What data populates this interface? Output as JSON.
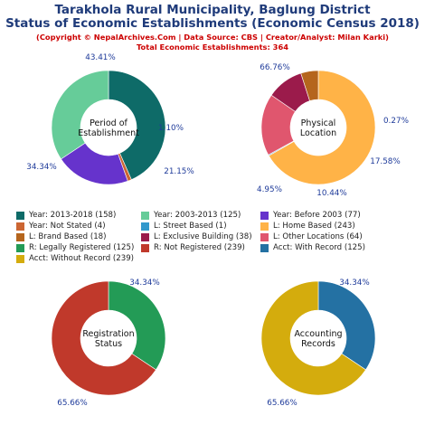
{
  "header": {
    "title_line1": "Tarakhola Rural Municipality, Baglung District",
    "title_line2": "Status of Economic Establishments (Economic Census 2018)",
    "copyright": "(Copyright © NepalArchives.Com | Data Source: CBS | Creator/Analyst: Milan Karki)",
    "total": "Total Economic Establishments: 364"
  },
  "legend": [
    {
      "label": "Year: 2013-2018 (158)",
      "color": "#0e6b68"
    },
    {
      "label": "Year: 2003-2013 (125)",
      "color": "#66cc99"
    },
    {
      "label": "Year: Before 2003 (77)",
      "color": "#6633cc"
    },
    {
      "label": "Year: Not Stated (4)",
      "color": "#cc6633"
    },
    {
      "label": "L: Street Based (1)",
      "color": "#3399cc"
    },
    {
      "label": "L: Home Based (243)",
      "color": "#ffb347"
    },
    {
      "label": "L: Brand Based (18)",
      "color": "#b5651d"
    },
    {
      "label": "L: Exclusive Building (38)",
      "color": "#9b1b4b"
    },
    {
      "label": "L: Other Locations (64)",
      "color": "#e0566e"
    },
    {
      "label": "R: Legally Registered (125)",
      "color": "#239b56"
    },
    {
      "label": "R: Not Registered (239)",
      "color": "#c0392b"
    },
    {
      "label": "Acct: With Record (125)",
      "color": "#2471a3"
    },
    {
      "label": "Acct: Without Record (239)",
      "color": "#d4ac0d"
    }
  ],
  "chart_data": [
    {
      "type": "pie",
      "center_label": [
        "Period of",
        "Establishment"
      ],
      "slices": [
        {
          "name": "Year: 2013-2018",
          "value": 158,
          "percent_label": "43.41%",
          "color": "#0e6b68"
        },
        {
          "name": "Year: Not Stated",
          "value": 4,
          "percent_label": "1.10%",
          "color": "#cc6633"
        },
        {
          "name": "Year: Before 2003",
          "value": 77,
          "percent_label": "21.15%",
          "color": "#6633cc"
        },
        {
          "name": "Year: 2003-2013",
          "value": 125,
          "percent_label": "34.34%",
          "color": "#66cc99"
        }
      ]
    },
    {
      "type": "pie",
      "center_label": [
        "Physical",
        "Location"
      ],
      "slices": [
        {
          "name": "L: Home Based",
          "value": 243,
          "percent_label": "66.76%",
          "color": "#ffb347"
        },
        {
          "name": "L: Street Based",
          "value": 1,
          "percent_label": "0.27%",
          "color": "#3399cc"
        },
        {
          "name": "L: Other Locations",
          "value": 64,
          "percent_label": "17.58%",
          "color": "#e0566e"
        },
        {
          "name": "L: Exclusive Building",
          "value": 38,
          "percent_label": "10.44%",
          "color": "#9b1b4b"
        },
        {
          "name": "L: Brand Based",
          "value": 18,
          "percent_label": "4.95%",
          "color": "#b5651d"
        }
      ]
    },
    {
      "type": "pie",
      "center_label": [
        "Registration",
        "Status"
      ],
      "slices": [
        {
          "name": "R: Legally Registered",
          "value": 125,
          "percent_label": "34.34%",
          "color": "#239b56"
        },
        {
          "name": "R: Not Registered",
          "value": 239,
          "percent_label": "65.66%",
          "color": "#c0392b"
        }
      ]
    },
    {
      "type": "pie",
      "center_label": [
        "Accounting",
        "Records"
      ],
      "slices": [
        {
          "name": "Acct: With Record",
          "value": 125,
          "percent_label": "34.34%",
          "color": "#2471a3"
        },
        {
          "name": "Acct: Without Record",
          "value": 239,
          "percent_label": "65.66%",
          "color": "#d4ac0d"
        }
      ]
    }
  ]
}
